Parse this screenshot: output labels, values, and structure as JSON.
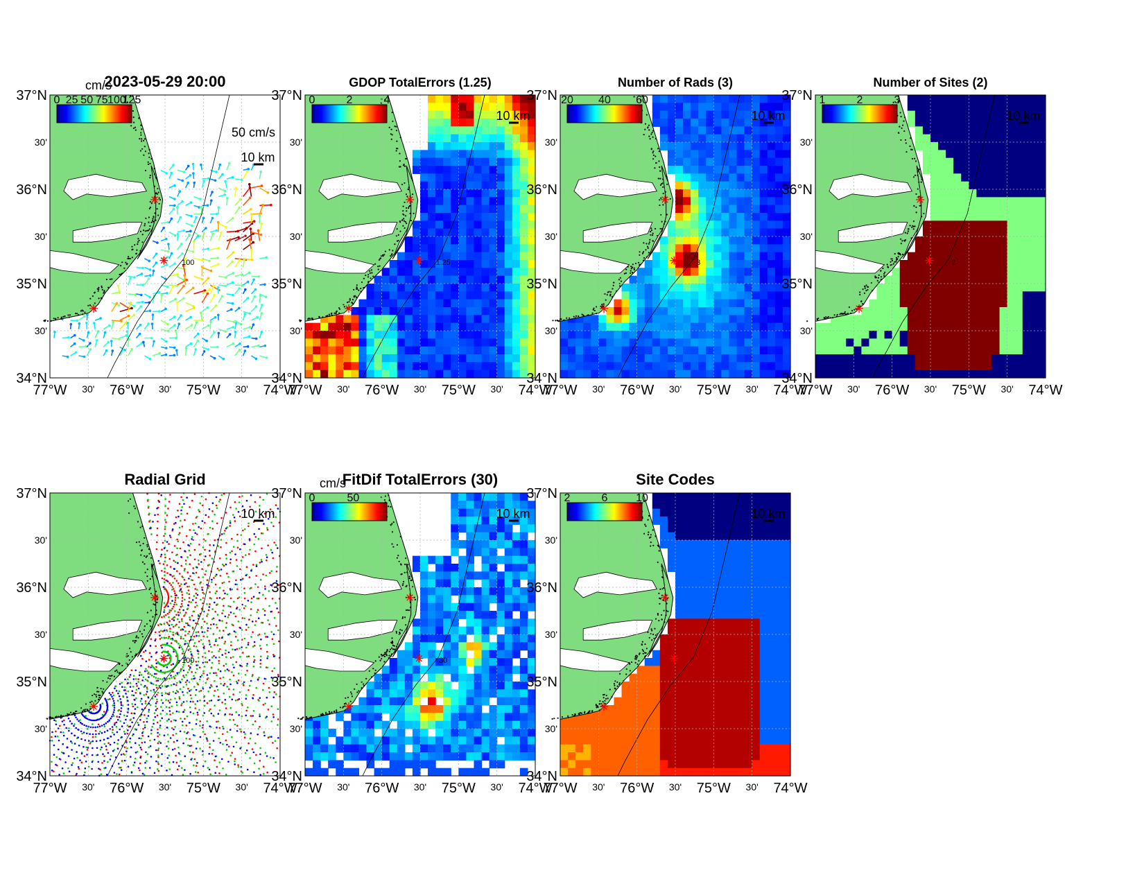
{
  "figure": {
    "timestamp": "2023-05-29 20:00"
  },
  "map": {
    "lat_labels": [
      "37°N",
      "30'",
      "36°N",
      "30'",
      "35°N",
      "30'",
      "34°N"
    ],
    "lon_labels": [
      "77°W",
      "30'",
      "76°W",
      "30'",
      "75°W",
      "30'",
      "74°W"
    ],
    "scale_bar_label": "10 km",
    "site_marker": "red-asterisk",
    "colors": {
      "land": "#7fdc7f",
      "coast": "#000000",
      "site": "#ff0000"
    }
  },
  "panels": [
    {
      "id": "surface-currents",
      "title": "2023-05-29 20:00",
      "colorbar_unit": "cm/s",
      "colorbar_ticks": [
        "0",
        "25",
        "50",
        "75",
        "100",
        "125"
      ],
      "vector_scale_label": "50 cm/s",
      "contour_label": "100",
      "field": "currents"
    },
    {
      "id": "gdop-total-errors",
      "title": "GDOP TotalErrors (1.25)",
      "colorbar_ticks": [
        "0",
        "2",
        "4"
      ],
      "contour_label": "1.25",
      "field": "gdop"
    },
    {
      "id": "number-of-rads",
      "title": "Number of Rads (3)",
      "colorbar_ticks": [
        "20",
        "40",
        "60"
      ],
      "contour_label": "3",
      "field": "rads"
    },
    {
      "id": "number-of-sites",
      "title": "Number of Sites (2)",
      "colorbar_ticks": [
        "1",
        "2",
        "3"
      ],
      "contour_label": "2",
      "field": "sites"
    },
    {
      "id": "radial-grid",
      "title": "Radial Grid",
      "contour_label": "100",
      "field": "radial"
    },
    {
      "id": "fitdif-total-errors",
      "title": "FitDif TotalErrors (30)",
      "colorbar_unit": "cm/s",
      "colorbar_ticks": [
        "0",
        "50"
      ],
      "contour_label": "30",
      "field": "fitdif"
    },
    {
      "id": "site-codes",
      "title": "Site Codes",
      "colorbar_ticks": [
        "2",
        "6",
        "10"
      ],
      "field": "codes"
    }
  ]
}
